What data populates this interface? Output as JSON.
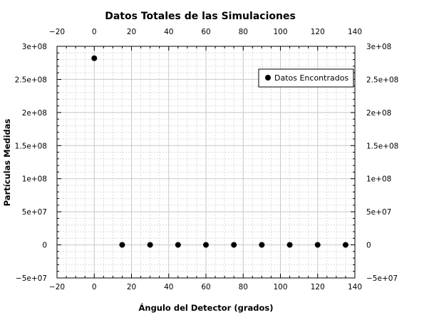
{
  "chart_data": {
    "type": "scatter",
    "title": "Datos Totales de las Simulaciones",
    "xlabel": "Ángulo del Detector (grados)",
    "ylabel": "Partículas Medidas",
    "xlim": [
      -20,
      140
    ],
    "ylim": [
      -50000000,
      300000000
    ],
    "x_ticks": [
      -20,
      0,
      20,
      40,
      60,
      80,
      100,
      120,
      140
    ],
    "x_tick_labels": [
      "−20",
      "0",
      "20",
      "40",
      "60",
      "80",
      "100",
      "120",
      "140"
    ],
    "y_ticks": [
      -50000000,
      0,
      50000000,
      100000000,
      150000000,
      200000000,
      250000000,
      300000000
    ],
    "y_tick_labels": [
      "−5e+07",
      "0",
      "5e+07",
      "1e+08",
      "1.5e+08",
      "2e+08",
      "2.5e+08",
      "3e+08"
    ],
    "grid": true,
    "legend_position": "top-right",
    "series": [
      {
        "name": "Datos Encontrados",
        "color": "#000000",
        "marker": "circle",
        "x": [
          0,
          15,
          30,
          45,
          60,
          75,
          90,
          105,
          120,
          135
        ],
        "y": [
          282000000,
          0,
          0,
          0,
          0,
          0,
          0,
          0,
          0,
          0
        ]
      }
    ]
  }
}
